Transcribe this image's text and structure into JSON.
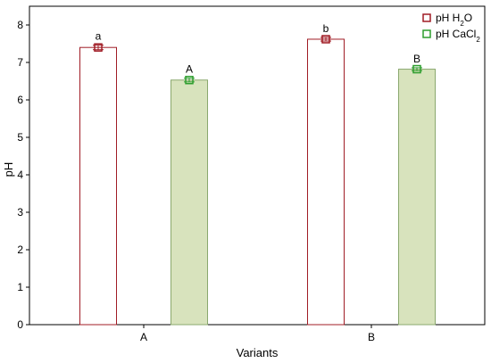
{
  "chart_data": {
    "type": "bar",
    "categories": [
      "A",
      "B"
    ],
    "xlabel": "Variants",
    "ylabel": "pH",
    "ylim": [
      0,
      8.5
    ],
    "yticks": [
      0,
      1,
      2,
      3,
      4,
      5,
      6,
      7,
      8
    ],
    "grid": false,
    "legend_position": "top-right",
    "series": [
      {
        "name": "pH H2O",
        "legend_parts": [
          [
            "pH H",
            false
          ],
          [
            "2",
            true
          ],
          [
            "O",
            false
          ]
        ],
        "values": [
          7.4,
          7.62
        ],
        "errors": [
          0.06,
          0.05
        ],
        "labels": [
          "a",
          "b"
        ],
        "fill": "#ffffff",
        "edge": "#a01c25"
      },
      {
        "name": "pH CaCl2",
        "legend_parts": [
          [
            "pH CaCl",
            false
          ],
          [
            "2",
            true
          ]
        ],
        "values": [
          6.53,
          6.82
        ],
        "errors": [
          0.05,
          0.04
        ],
        "labels": [
          "A",
          "B"
        ],
        "fill": "#d8e3bd",
        "edge": "#8aa86e",
        "marker": "#2e9e2e"
      }
    ]
  }
}
